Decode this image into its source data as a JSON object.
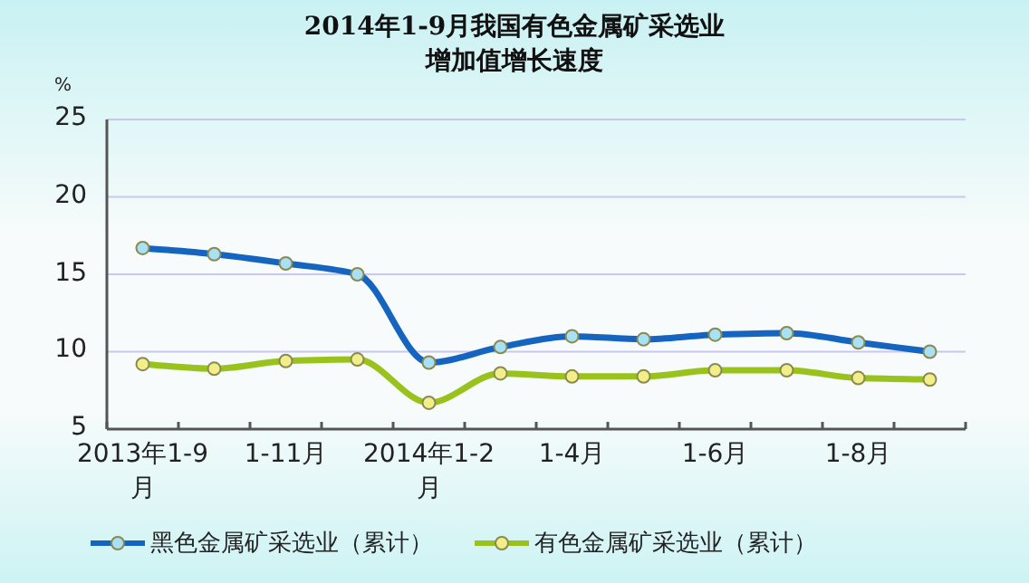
{
  "chart_data": {
    "type": "line",
    "title": "2014年1-9月我国有色金属矿采选业增加值增长速度",
    "ylabel": "%",
    "categories": [
      "2013年1-9月",
      null,
      "1-11月",
      null,
      "2014年1-2月",
      null,
      "1-4月",
      null,
      "1-6月",
      null,
      "1-8月",
      null
    ],
    "series": [
      {
        "name": "黑色金属矿采选业（累计）",
        "color": "#1565c0",
        "values": [
          16.7,
          16.3,
          15.7,
          15.0,
          9.3,
          10.3,
          11.0,
          10.8,
          11.1,
          11.2,
          10.6,
          10.0
        ]
      },
      {
        "name": "有色金属矿采选业（累计）",
        "color": "#99c21c",
        "values": [
          9.2,
          8.9,
          9.4,
          9.5,
          6.7,
          8.6,
          8.4,
          8.4,
          8.8,
          8.8,
          8.3,
          8.2
        ]
      }
    ],
    "ylim": [
      5,
      25
    ],
    "yticks": [
      5,
      10,
      15,
      20,
      25
    ],
    "grid": "y",
    "legend": "bottom",
    "marker": "circle",
    "line_style": "solid"
  }
}
